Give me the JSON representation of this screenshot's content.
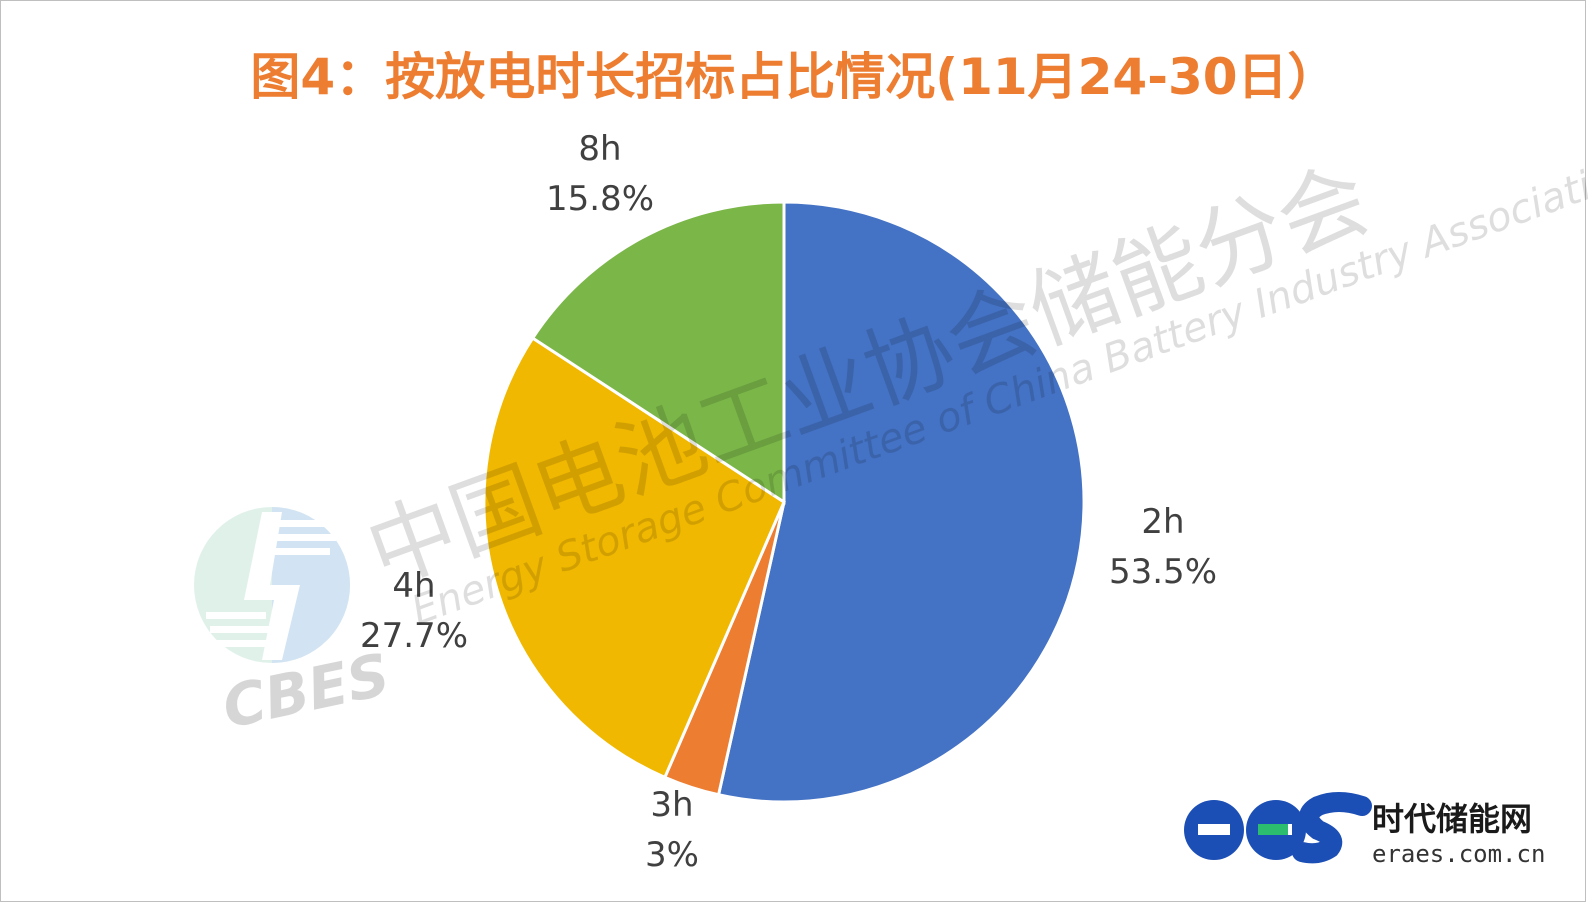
{
  "chart_data": {
    "type": "pie",
    "title": "图4：按放电时长招标占比情况(11月24-30日）",
    "slices": [
      {
        "label": "2h",
        "value": 53.5,
        "value_label": "53.5%",
        "color": "#4472c4"
      },
      {
        "label": "3h",
        "value": 3,
        "value_label": "3%",
        "color": "#ed7d31"
      },
      {
        "label": "4h",
        "value": 27.7,
        "value_label": "27.7%",
        "color": "#f0b800"
      },
      {
        "label": "8h",
        "value": 15.8,
        "value_label": "15.8%",
        "color": "#7ab648"
      }
    ],
    "start": "12 o'clock",
    "direction": "clockwise",
    "legend": "none",
    "data_labels": "outside"
  },
  "watermark": {
    "cn": "中国电池工业协会储能分会",
    "en": "Energy Storage Committee of China Battery Industry Association",
    "logo_text": "CBES"
  },
  "brand": {
    "logo_text": "ees",
    "name": "时代储能网",
    "url": "eraes.com.cn"
  }
}
